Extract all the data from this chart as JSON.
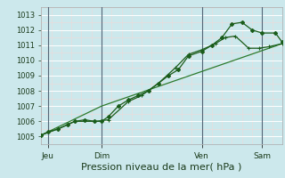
{
  "background_color": "#cce8ec",
  "plot_bg_color": "#cce8ec",
  "grid_color": "#ffffff",
  "grid_minor_color": "#e8f4f6",
  "line_color_dark": "#1a5c1a",
  "line_color_mid": "#2d7a2d",
  "xlim": [
    0,
    72
  ],
  "ylim": [
    1004.5,
    1013.5
  ],
  "yticks": [
    1005,
    1006,
    1007,
    1008,
    1009,
    1010,
    1011,
    1012,
    1013
  ],
  "xlabel": "Pression niveau de la mer( hPa )",
  "xlabel_fontsize": 8,
  "xtick_labels": [
    "Jeu",
    "Dim",
    "Ven",
    "Sam"
  ],
  "xtick_positions": [
    2,
    18,
    48,
    66
  ],
  "vline_positions": [
    2,
    18,
    48,
    66
  ],
  "series1_x": [
    0,
    2,
    5,
    8,
    10,
    13,
    16,
    18,
    20,
    23,
    26,
    29,
    32,
    35,
    38,
    41,
    44,
    48,
    51,
    54,
    57,
    60,
    63,
    66,
    70,
    72
  ],
  "series1_y": [
    1005.1,
    1005.3,
    1005.5,
    1005.8,
    1006.0,
    1006.1,
    1006.0,
    1006.0,
    1006.3,
    1007.0,
    1007.4,
    1007.7,
    1008.0,
    1008.5,
    1009.0,
    1009.4,
    1010.3,
    1010.6,
    1011.0,
    1011.5,
    1012.4,
    1012.5,
    1012.0,
    1011.8,
    1011.8,
    1011.2
  ],
  "series2_x": [
    0,
    18,
    72
  ],
  "series2_y": [
    1005.1,
    1007.0,
    1011.1
  ],
  "series3_x": [
    0,
    5,
    10,
    16,
    20,
    26,
    30,
    35,
    40,
    44,
    48,
    52,
    55,
    58,
    62,
    65,
    68,
    72
  ],
  "series3_y": [
    1005.1,
    1005.5,
    1006.0,
    1006.0,
    1006.1,
    1007.3,
    1007.7,
    1008.5,
    1009.5,
    1010.4,
    1010.7,
    1011.1,
    1011.5,
    1011.6,
    1010.8,
    1010.8,
    1010.9,
    1011.1
  ]
}
